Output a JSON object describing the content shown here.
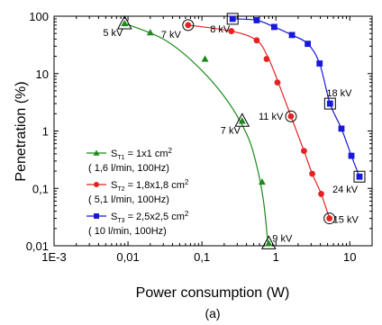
{
  "chart_data": {
    "type": "scatter",
    "xscale": "log",
    "yscale": "log",
    "xlim": [
      0.001,
      20
    ],
    "ylim": [
      0.01,
      100
    ],
    "xlabel": "Power consumption (W)",
    "ylabel": "Penetration (%)",
    "caption": "(a)",
    "x_ticks": [
      {
        "value": 0.001,
        "label": "1E-3"
      },
      {
        "value": 0.01,
        "label": "0,01"
      },
      {
        "value": 0.1,
        "label": "0,1"
      },
      {
        "value": 1,
        "label": "1"
      },
      {
        "value": 10,
        "label": "10"
      }
    ],
    "y_ticks": [
      {
        "value": 0.01,
        "label": "0,01"
      },
      {
        "value": 0.1,
        "label": "0,1"
      },
      {
        "value": 1,
        "label": "1"
      },
      {
        "value": 10,
        "label": "10"
      },
      {
        "value": 100,
        "label": "100"
      }
    ],
    "grid": false,
    "legend_position": "bottom-left",
    "series": [
      {
        "legend_main": "S",
        "legend_sub": "T1",
        "legend_rest": " = 1x1 cm",
        "legend_sup": "2",
        "legend_note": "( 1,6 l/min, 100Hz)",
        "color": "#1a8a1a",
        "marker": "triangle",
        "points": [
          [
            0.009,
            75
          ],
          [
            0.02,
            52
          ],
          [
            0.11,
            18
          ],
          [
            0.35,
            1.5
          ],
          [
            0.65,
            0.13
          ],
          [
            0.8,
            0.011
          ]
        ],
        "curve": [
          [
            0.009,
            75
          ],
          [
            0.03,
            40
          ],
          [
            0.08,
            15
          ],
          [
            0.2,
            4
          ],
          [
            0.4,
            0.9
          ],
          [
            0.55,
            0.25
          ],
          [
            0.68,
            0.06
          ],
          [
            0.78,
            0.011
          ]
        ],
        "labeled_points": [
          {
            "x": 0.009,
            "y": 75,
            "label": "5 kV"
          },
          {
            "x": 0.35,
            "y": 1.5,
            "label": "7 kV"
          },
          {
            "x": 0.8,
            "y": 0.011,
            "label": "9 kV"
          }
        ]
      },
      {
        "legend_main": "S",
        "legend_sub": "T2",
        "legend_rest": " = 1,8x1,8 cm",
        "legend_sup": "2",
        "legend_note": "( 5,1 l/min, 100Hz)",
        "color": "#e52222",
        "marker": "circle",
        "points": [
          [
            0.065,
            70
          ],
          [
            0.25,
            55
          ],
          [
            0.55,
            38
          ],
          [
            0.75,
            18
          ],
          [
            1.05,
            7
          ],
          [
            1.6,
            1.8
          ],
          [
            2.4,
            0.45
          ],
          [
            3.1,
            0.18
          ],
          [
            4.1,
            0.08
          ],
          [
            5.3,
            0.03
          ]
        ],
        "curve": [
          [
            0.065,
            70
          ],
          [
            0.25,
            55
          ],
          [
            0.55,
            38
          ],
          [
            0.8,
            18
          ],
          [
            1.1,
            6.5
          ],
          [
            1.6,
            1.8
          ],
          [
            2.4,
            0.45
          ],
          [
            3.1,
            0.18
          ],
          [
            4.1,
            0.08
          ],
          [
            5.3,
            0.03
          ]
        ],
        "labeled_points": [
          {
            "x": 0.065,
            "y": 70,
            "label": "7 kV"
          },
          {
            "x": 1.6,
            "y": 1.8,
            "label": "11 kV"
          },
          {
            "x": 5.3,
            "y": 0.03,
            "label": "15 kV"
          }
        ]
      },
      {
        "legend_main": "S",
        "legend_sub": "T3",
        "legend_rest": " = 2,5x2,5 cm",
        "legend_sup": "2",
        "legend_note": "(  10 l/min, 100Hz)",
        "color": "#1818d8",
        "marker": "square",
        "points": [
          [
            0.26,
            90
          ],
          [
            0.55,
            85
          ],
          [
            0.95,
            65
          ],
          [
            1.65,
            47
          ],
          [
            2.7,
            33
          ],
          [
            3.9,
            15
          ],
          [
            5.4,
            3
          ],
          [
            7.7,
            1.1
          ],
          [
            10.5,
            0.37
          ],
          [
            13.5,
            0.16
          ]
        ],
        "curve": [
          [
            0.26,
            90
          ],
          [
            0.55,
            85
          ],
          [
            0.95,
            65
          ],
          [
            1.65,
            47
          ],
          [
            2.7,
            33
          ],
          [
            3.9,
            15
          ],
          [
            5.4,
            3
          ],
          [
            7.7,
            1.1
          ],
          [
            10.5,
            0.37
          ],
          [
            13.5,
            0.16
          ]
        ],
        "labeled_points": [
          {
            "x": 0.26,
            "y": 90,
            "label": "8 kV"
          },
          {
            "x": 5.4,
            "y": 3,
            "label": "18 kV"
          },
          {
            "x": 13.5,
            "y": 0.16,
            "label": "24 kV"
          }
        ]
      }
    ]
  }
}
